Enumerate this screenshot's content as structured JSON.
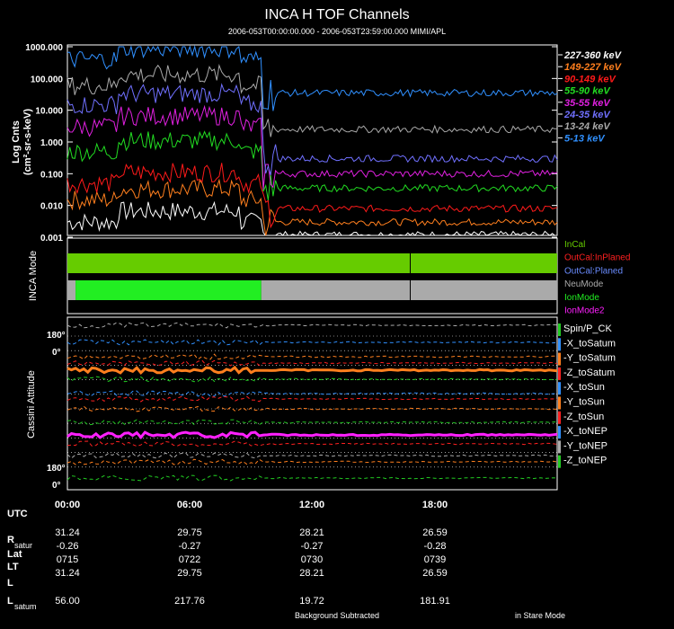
{
  "chart_data": [
    {
      "type": "line",
      "title": "INCA H TOF Channels",
      "subtitle": "2006-053T00:00:00.000 - 2006-053T23:59:00.000 MIMI/APL",
      "ylabel_line1": "Log Cnts",
      "ylabel_line2": "(cm²-sr-s-keV)",
      "yscale": "log",
      "ylim": [
        0.001,
        1000
      ],
      "yticks": [
        "1000.000",
        "100.000",
        "10.000",
        "1.000",
        "0.100",
        "0.010",
        "0.001"
      ],
      "xlim_hours": [
        0,
        24
      ],
      "step_hour": 9.5,
      "series": [
        {
          "name": "227-360 keV",
          "color": "#ffffff",
          "before": 0.003,
          "after": 0.0012
        },
        {
          "name": "149-227 keV",
          "color": "#ff7f1e",
          "before": 0.015,
          "after": 0.003
        },
        {
          "name": "90-149 keV",
          "color": "#ff1a1a",
          "before": 0.05,
          "after": 0.008
        },
        {
          "name": "55-90 keV",
          "color": "#22dd22",
          "before": 0.5,
          "after": 0.035
        },
        {
          "name": "35-55 keV",
          "color": "#e020e0",
          "before": 3,
          "after": 0.1
        },
        {
          "name": "24-35 keV",
          "color": "#7070ff",
          "before": 15,
          "after": 0.3
        },
        {
          "name": "13-24 keV",
          "color": "#aaaaaa",
          "before": 60,
          "after": 2.5
        },
        {
          "name": "5-13 keV",
          "color": "#3090ff",
          "before": 400,
          "after": 35
        }
      ]
    },
    {
      "type": "table",
      "name": "INCA Mode",
      "ylabel": "INCA Mode",
      "legend": [
        {
          "label": "InCal",
          "color": "#66cc00"
        },
        {
          "label": "OutCal:InPlaned",
          "color": "#ff2020"
        },
        {
          "label": "OutCal:Planed",
          "color": "#6a8cff"
        },
        {
          "label": "NeuMode",
          "color": "#aaaaaa"
        },
        {
          "label": "IonMode",
          "color": "#22ee22"
        },
        {
          "label": "IonMode2",
          "color": "#ff20ff"
        }
      ],
      "rows": [
        {
          "mode": "InCal",
          "segments": [
            {
              "from": 0,
              "to": 24,
              "color": "#66cc00"
            }
          ]
        },
        {
          "mode": "NeuMode/IonMode",
          "segments": [
            {
              "from": 0,
              "to": 0.4,
              "color": "#aaaaaa"
            },
            {
              "from": 0.4,
              "to": 9.5,
              "color": "#22ee22"
            },
            {
              "from": 9.5,
              "to": 24,
              "color": "#aaaaaa"
            }
          ]
        }
      ],
      "marker_hour": 16.8
    },
    {
      "type": "line",
      "name": "Cassini Attitude",
      "ylabel": "Cassini Attitude",
      "axis_top": [
        "180°",
        "0°"
      ],
      "axis_bottom": [
        "180°",
        "0°"
      ],
      "legend": [
        {
          "label": "Spin/P_CK",
          "color": "#22cc22"
        },
        {
          "label": "-X_toSatum",
          "color": "#3090ff"
        },
        {
          "label": "-Y_toSatum",
          "color": "#ff7f1e"
        },
        {
          "label": "-Z_toSatum",
          "color": "#ff2020"
        },
        {
          "label": "-X_toSun",
          "color": "#3090ff"
        },
        {
          "label": "-Y_toSun",
          "color": "#ff7f1e"
        },
        {
          "label": "-Z_toSun",
          "color": "#ff2020"
        },
        {
          "label": "-X_toNEP",
          "color": "#3090ff"
        },
        {
          "label": "-Y_toNEP",
          "color": "#aaaaaa"
        },
        {
          "label": "-Z_toNEP",
          "color": "#22cc22"
        }
      ]
    }
  ],
  "footer": {
    "utc_label": "UTC",
    "times": [
      "00:00",
      "06:00",
      "12:00",
      "18:00"
    ],
    "rows": [
      {
        "name": "R",
        "sub": "satur",
        "values": [
          "31.24",
          "29.75",
          "28.21",
          "26.59"
        ]
      },
      {
        "name": "Lat",
        "sub": "",
        "values": [
          "-0.26",
          "-0.27",
          "-0.27",
          "-0.28"
        ]
      },
      {
        "name": "LT",
        "sub": "",
        "values": [
          "0715",
          "0722",
          "0730",
          "0739"
        ]
      },
      {
        "name": "L",
        "sub": "",
        "values": [
          "31.24",
          "29.75",
          "28.21",
          "26.59"
        ]
      },
      {
        "name": "L",
        "sub": "satum",
        "values": [
          "56.00",
          "217.76",
          "19.72",
          "181.91"
        ]
      }
    ],
    "note_left": "Background Subtracted",
    "note_right": "in Stare Mode"
  }
}
